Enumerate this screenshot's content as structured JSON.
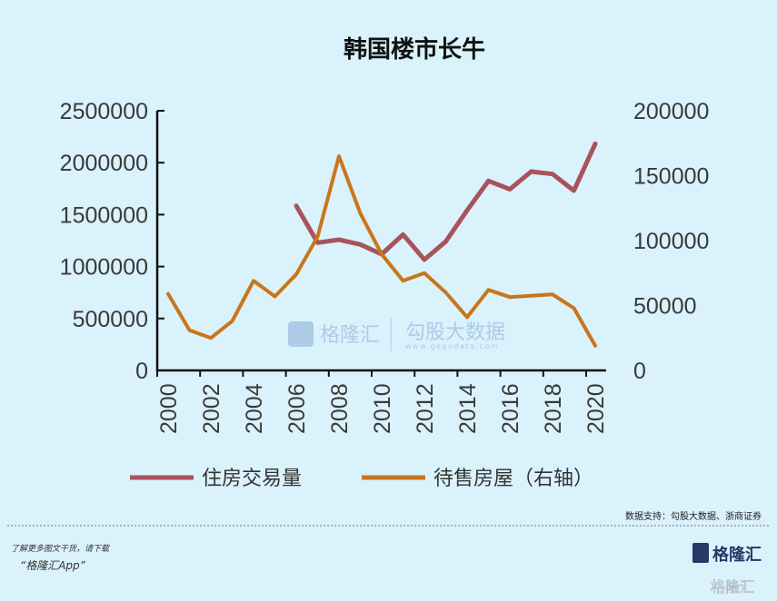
{
  "chart_data": {
    "type": "line",
    "title": "韩国楼市长牛",
    "x": [
      2000,
      2001,
      2002,
      2003,
      2004,
      2005,
      2006,
      2007,
      2008,
      2009,
      2010,
      2011,
      2012,
      2013,
      2014,
      2015,
      2016,
      2017,
      2018,
      2019,
      2020
    ],
    "x_tick_labels": [
      "2000",
      "2002",
      "2004",
      "2006",
      "2008",
      "2010",
      "2012",
      "2014",
      "2016",
      "2018",
      "2020"
    ],
    "left_axis": {
      "ylim": [
        0,
        2500000
      ],
      "tick_labels": [
        "0",
        "500000",
        "1000000",
        "1500000",
        "2000000",
        "2500000"
      ]
    },
    "right_axis": {
      "ylim": [
        0,
        200000
      ],
      "tick_labels": [
        "0",
        "50000",
        "100000",
        "150000",
        "200000"
      ]
    },
    "series": [
      {
        "name": "住房交易量",
        "axis": "left",
        "color": "#a8525a",
        "values": [
          null,
          null,
          null,
          null,
          null,
          null,
          1585000,
          1230000,
          1259000,
          1212000,
          1119000,
          1308000,
          1066000,
          1241000,
          1541000,
          1824000,
          1745000,
          1914000,
          1891000,
          1731000,
          2183000
        ]
      },
      {
        "name": "待售房屋（右轴）",
        "axis": "right",
        "color": "#c8761c",
        "values": [
          59000,
          31000,
          25000,
          38000,
          69000,
          57000,
          74000,
          103000,
          165000,
          121000,
          89500,
          69000,
          75000,
          60000,
          41000,
          62000,
          56500,
          57500,
          58500,
          48000,
          19000
        ]
      }
    ],
    "grid": false,
    "legend": "bottom"
  },
  "source": "数据支持：勾股大数据、浙商证券",
  "watermark": {
    "brand": "格隆汇",
    "brand_url": "www.gelonghui.com",
    "data_brand": "勾股大数据",
    "data_url": "www.gogudata.com"
  },
  "footer": {
    "promo_line": "了解更多图文干货，请下载",
    "app_name": "“格隆汇App”",
    "logo": "格隆汇"
  }
}
